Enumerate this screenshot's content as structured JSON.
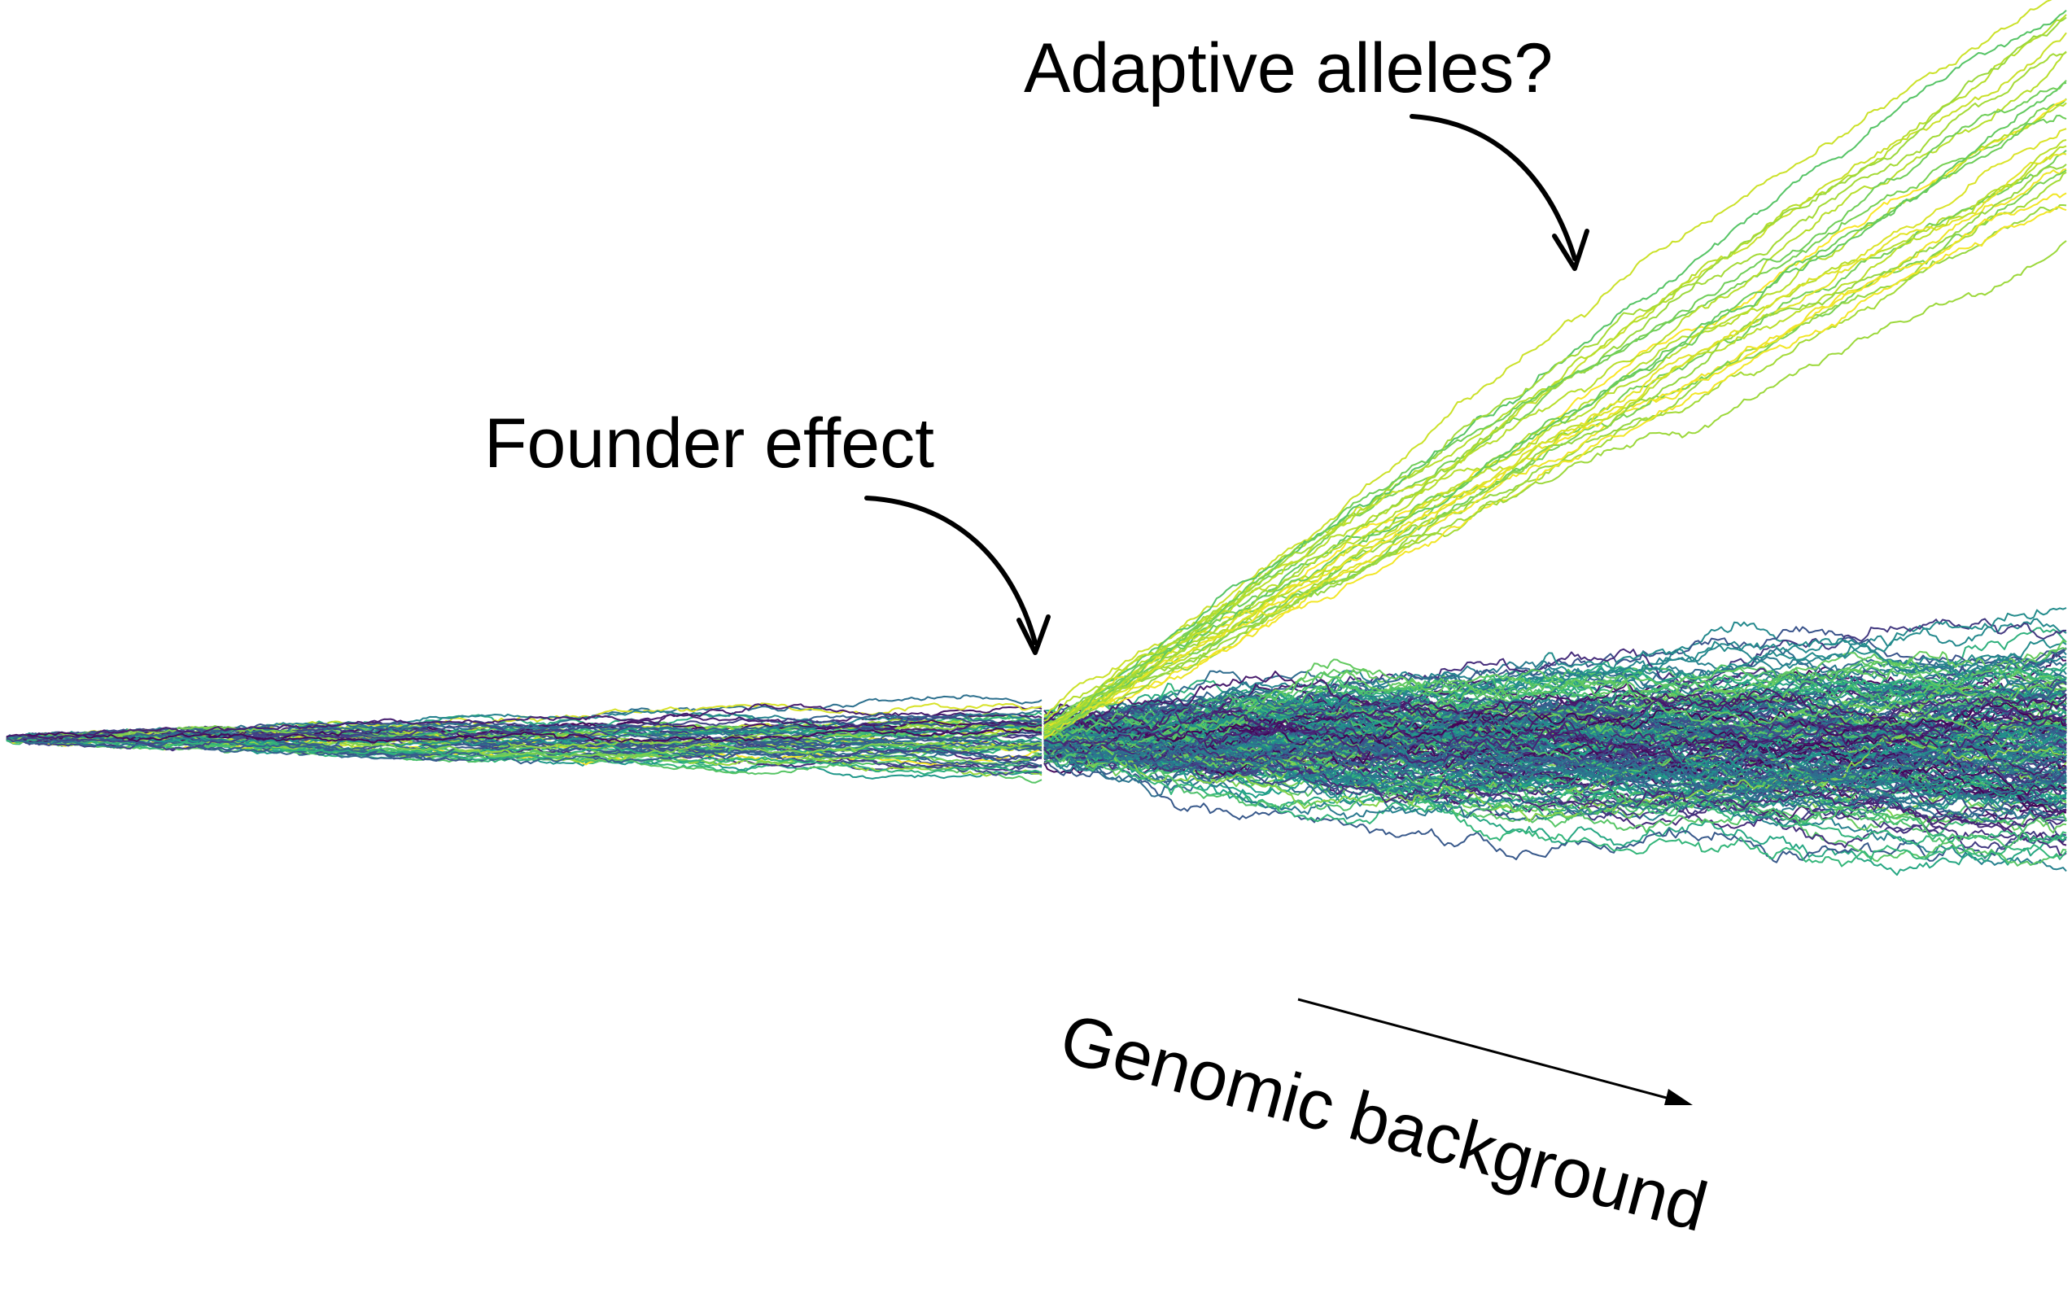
{
  "annotations": {
    "adaptive": "Adaptive alleles?",
    "founder": "Founder effect",
    "genomic": "Genomic background"
  },
  "palette": {
    "colormap": "viridis",
    "background": "#ffffff",
    "annotation_color": "#000000"
  },
  "trajectories": {
    "phase1_count": 60,
    "phase2_neutral_count": 200,
    "adaptive_count": 26
  }
}
